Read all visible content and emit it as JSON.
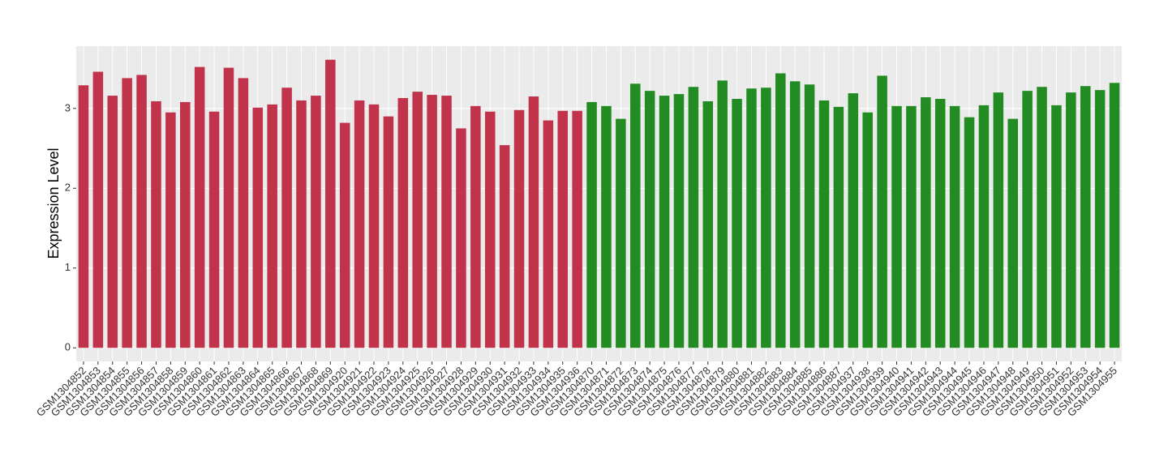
{
  "chart_data": {
    "type": "bar",
    "y_label": "Expression Level",
    "categories": [
      "GSM1304852",
      "GSM1304853",
      "GSM1304854",
      "GSM1304855",
      "GSM1304856",
      "GSM1304857",
      "GSM1304858",
      "GSM1304859",
      "GSM1304860",
      "GSM1304861",
      "GSM1304862",
      "GSM1304863",
      "GSM1304864",
      "GSM1304865",
      "GSM1304866",
      "GSM1304867",
      "GSM1304868",
      "GSM1304869",
      "GSM1304920",
      "GSM1304921",
      "GSM1304922",
      "GSM1304923",
      "GSM1304924",
      "GSM1304925",
      "GSM1304926",
      "GSM1304927",
      "GSM1304928",
      "GSM1304929",
      "GSM1304930",
      "GSM1304931",
      "GSM1304932",
      "GSM1304933",
      "GSM1304934",
      "GSM1304935",
      "GSM1304936",
      "GSM1304870",
      "GSM1304871",
      "GSM1304872",
      "GSM1304873",
      "GSM1304874",
      "GSM1304875",
      "GSM1304876",
      "GSM1304877",
      "GSM1304878",
      "GSM1304879",
      "GSM1304880",
      "GSM1304881",
      "GSM1304882",
      "GSM1304883",
      "GSM1304884",
      "GSM1304885",
      "GSM1304886",
      "GSM1304887",
      "GSM1304937",
      "GSM1304938",
      "GSM1304939",
      "GSM1304940",
      "GSM1304941",
      "GSM1304942",
      "GSM1304943",
      "GSM1304944",
      "GSM1304945",
      "GSM1304946",
      "GSM1304947",
      "GSM1304948",
      "GSM1304949",
      "GSM1304950",
      "GSM1304951",
      "GSM1304952",
      "GSM1304953",
      "GSM1304954",
      "GSM1304955"
    ],
    "values": [
      3.29,
      3.46,
      3.16,
      3.38,
      3.42,
      3.09,
      2.95,
      3.08,
      3.52,
      2.96,
      3.51,
      3.38,
      3.01,
      3.05,
      3.26,
      3.1,
      3.16,
      3.61,
      2.82,
      3.1,
      3.05,
      2.9,
      3.13,
      3.21,
      3.17,
      3.16,
      2.75,
      3.03,
      2.96,
      2.54,
      2.98,
      3.15,
      2.85,
      2.97,
      2.97,
      3.08,
      3.03,
      2.87,
      3.31,
      3.22,
      3.16,
      3.18,
      3.27,
      3.09,
      3.35,
      3.12,
      3.25,
      3.26,
      3.44,
      3.34,
      3.3,
      3.1,
      3.02,
      3.19,
      2.95,
      3.41,
      3.03,
      3.03,
      3.14,
      3.12,
      3.03,
      2.89,
      3.04,
      3.2,
      2.87,
      3.22,
      3.27,
      3.04,
      3.2,
      3.28,
      3.23,
      3.32
    ],
    "colors": [
      "#c0334a",
      "#c0334a",
      "#c0334a",
      "#c0334a",
      "#c0334a",
      "#c0334a",
      "#c0334a",
      "#c0334a",
      "#c0334a",
      "#c0334a",
      "#c0334a",
      "#c0334a",
      "#c0334a",
      "#c0334a",
      "#c0334a",
      "#c0334a",
      "#c0334a",
      "#c0334a",
      "#c0334a",
      "#c0334a",
      "#c0334a",
      "#c0334a",
      "#c0334a",
      "#c0334a",
      "#c0334a",
      "#c0334a",
      "#c0334a",
      "#c0334a",
      "#c0334a",
      "#c0334a",
      "#c0334a",
      "#c0334a",
      "#c0334a",
      "#c0334a",
      "#c0334a",
      "#228b22",
      "#228b22",
      "#228b22",
      "#228b22",
      "#228b22",
      "#228b22",
      "#228b22",
      "#228b22",
      "#228b22",
      "#228b22",
      "#228b22",
      "#228b22",
      "#228b22",
      "#228b22",
      "#228b22",
      "#228b22",
      "#228b22",
      "#228b22",
      "#228b22",
      "#228b22",
      "#228b22",
      "#228b22",
      "#228b22",
      "#228b22",
      "#228b22",
      "#228b22",
      "#228b22",
      "#228b22",
      "#228b22",
      "#228b22",
      "#228b22",
      "#228b22",
      "#228b22",
      "#228b22",
      "#228b22",
      "#228b22",
      "#228b22"
    ],
    "ylim": [
      -0.17,
      3.78
    ],
    "yticks": [
      0,
      1,
      2,
      3
    ],
    "grid": true
  }
}
